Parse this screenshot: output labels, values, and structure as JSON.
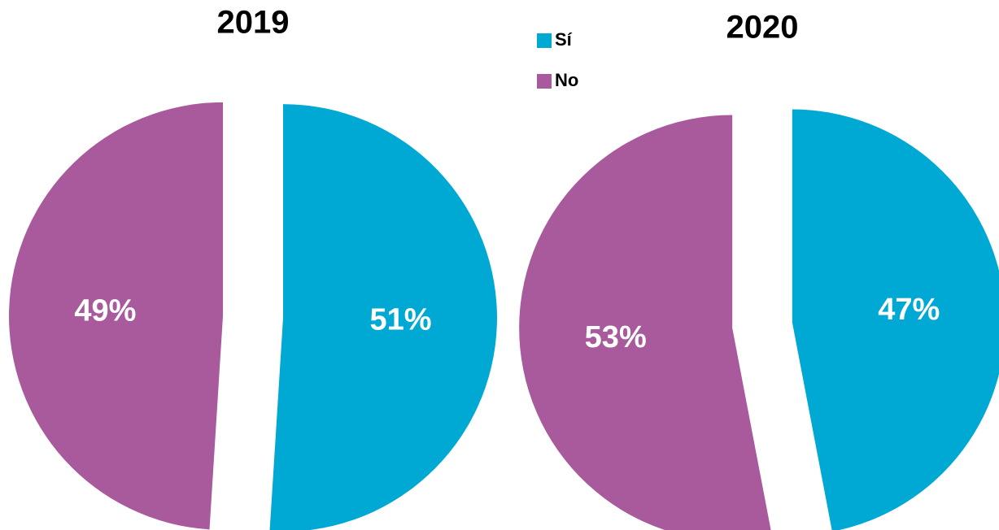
{
  "legend": {
    "names": [
      "Sí",
      "No"
    ],
    "colors": [
      "#00a8d4",
      "#a85a9c"
    ]
  },
  "chart_data": [
    {
      "type": "pie",
      "title": "2019",
      "values": [
        51,
        49
      ],
      "value_labels": [
        "51%",
        "49%"
      ]
    },
    {
      "type": "pie",
      "title": "2020",
      "values": [
        47,
        53
      ],
      "value_labels": [
        "47%",
        "53%"
      ]
    }
  ]
}
